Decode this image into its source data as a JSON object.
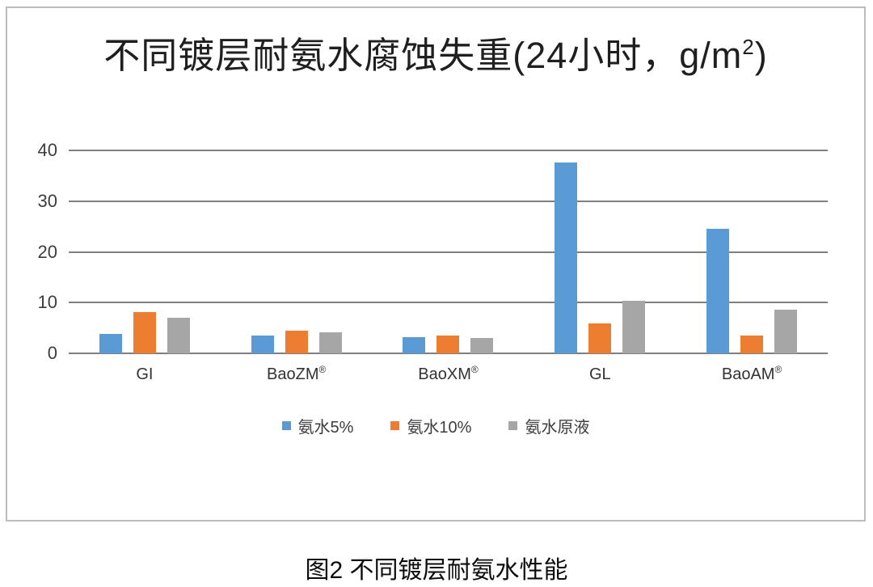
{
  "display": {
    "title_parts": {
      "prefix": "不同镀层耐氨水腐蚀失重(24小时，g/m",
      "sup": "2",
      "suffix": ")"
    }
  },
  "chart_data": {
    "type": "bar",
    "title": "不同镀层耐氨水腐蚀失重(24小时，g/m²)",
    "categories": [
      "GI",
      "BaoZM®",
      "BaoXM®",
      "GL",
      "BaoAM®"
    ],
    "series": [
      {
        "key": "ammonia-5pct",
        "name": "氨水5%",
        "color": "#5B9BD5",
        "values": [
          3.8,
          3.5,
          3.2,
          37.6,
          24.5
        ]
      },
      {
        "key": "ammonia-10pct",
        "name": "氨水10%",
        "color": "#ED7D31",
        "values": [
          8.2,
          4.4,
          3.5,
          5.9,
          3.5
        ]
      },
      {
        "key": "ammonia-raw",
        "name": "氨水原液",
        "color": "#A6A6A6",
        "values": [
          7.0,
          4.1,
          3.0,
          10.4,
          8.6
        ]
      }
    ],
    "xlabel": "",
    "ylabel": "",
    "ylim": [
      0,
      40
    ],
    "yticks": [
      0,
      10,
      20,
      30,
      40
    ],
    "grid": true,
    "legend_position": "bottom"
  },
  "caption": "图2 不同镀层耐氨水性能",
  "colors": {
    "frame_border": "#BDBDBD",
    "gridline": "#7F7F7F",
    "title_text": "#1F1F1F",
    "axis_text": "#3D3D3D",
    "background": "#FFFFFF"
  }
}
